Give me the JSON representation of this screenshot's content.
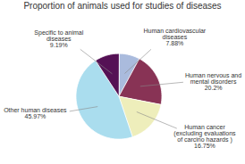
{
  "chart_data": {
    "type": "pie",
    "title": "Proportion of animals used for studies of diseases",
    "categories": [
      "Human cardiovascular\ndiseases\n7.88%",
      "Human nervous and\nmental disorders\n20.2%",
      "Human cancer\n(excluding evaluations\nof carcino hazards )\n16.75%",
      "Other human diseases\n45.97%",
      "Specific to animal\ndiseases\n9.19%"
    ],
    "values": [
      7.88,
      20.2,
      16.75,
      45.97,
      9.19
    ],
    "colors": [
      "#aabbdd",
      "#883355",
      "#eeeebb",
      "#aaddee",
      "#551155"
    ]
  }
}
